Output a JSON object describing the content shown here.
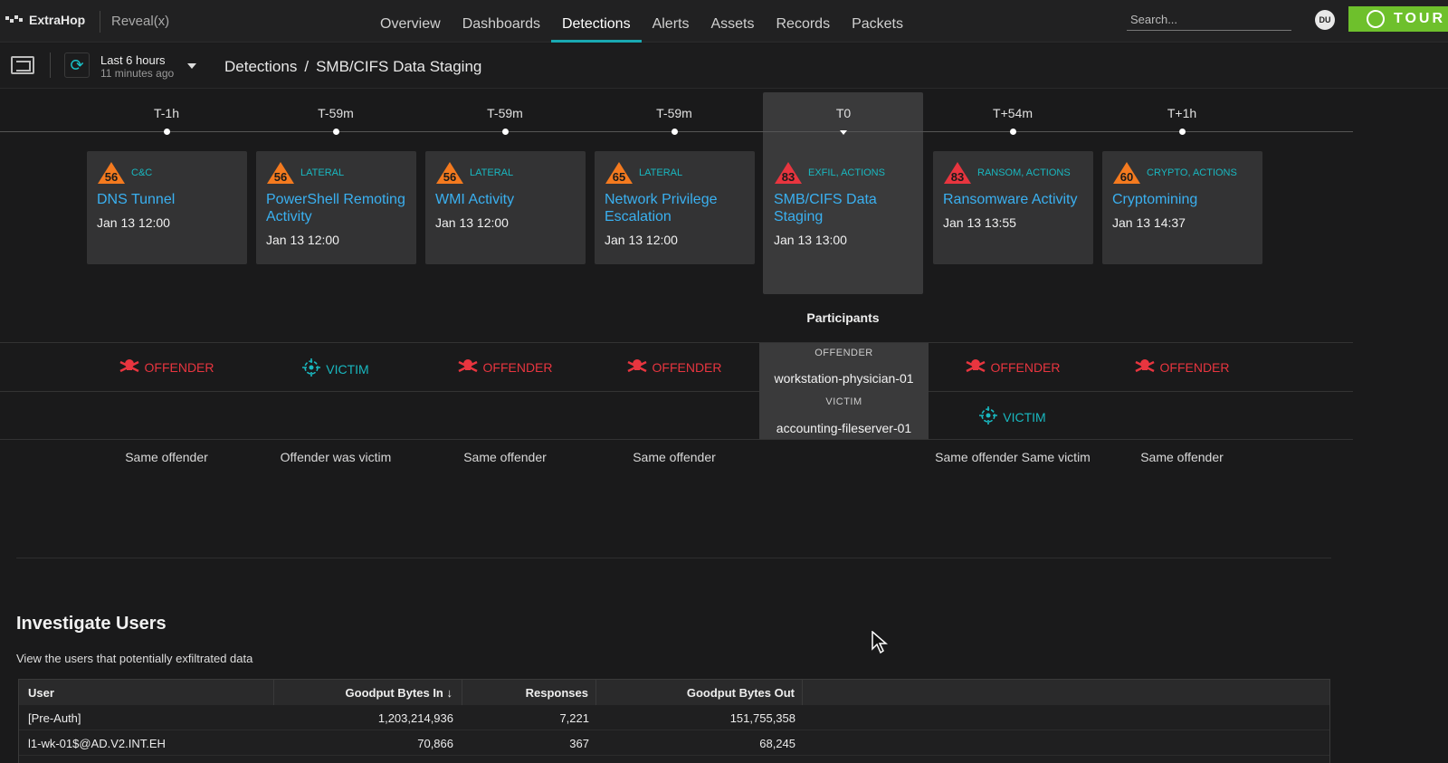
{
  "app": {
    "logo": "ExtraHop",
    "product": "Reveal(x)"
  },
  "nav": {
    "links": [
      "Overview",
      "Dashboards",
      "Detections",
      "Alerts",
      "Assets",
      "Records",
      "Packets"
    ],
    "active": "Detections",
    "search_placeholder": "Search...",
    "avatar": "DU",
    "tour": "TOUR"
  },
  "toolbar": {
    "time_range": "Last 6 hours",
    "time_updated": "11 minutes ago",
    "breadcrumb_root": "Detections",
    "breadcrumb_sep": "/",
    "breadcrumb_current": "SMB/CIFS Data Staging"
  },
  "timeline": [
    {
      "offset": "T-1h",
      "risk": "56",
      "risk_color": "#f47a1f",
      "category": "C&C",
      "title": "DNS Tunnel",
      "date": "Jan 13 12:00",
      "offender": "OFFENDER",
      "victim": "",
      "relation": "Same offender"
    },
    {
      "offset": "T-59m",
      "risk": "56",
      "risk_color": "#f47a1f",
      "category": "LATERAL",
      "title": "PowerShell Remoting Activity",
      "date": "Jan 13 12:00",
      "offender": "",
      "victim": "VICTIM",
      "relation": "Offender was victim"
    },
    {
      "offset": "T-59m",
      "risk": "56",
      "risk_color": "#f47a1f",
      "category": "LATERAL",
      "title": "WMI Activity",
      "date": "Jan 13 12:00",
      "offender": "OFFENDER",
      "victim": "",
      "relation": "Same offender"
    },
    {
      "offset": "T-59m",
      "risk": "65",
      "risk_color": "#f47a1f",
      "category": "LATERAL",
      "title": "Network Privilege Escalation",
      "date": "Jan 13 12:00",
      "offender": "OFFENDER",
      "victim": "",
      "relation": "Same offender"
    },
    {
      "offset": "T0",
      "risk": "83",
      "risk_color": "#e8353f",
      "category": "EXFIL, ACTIONS",
      "title": "SMB/CIFS Data Staging",
      "date": "Jan 13 13:00",
      "offender": "",
      "victim": "",
      "relation": ""
    },
    {
      "offset": "T+54m",
      "risk": "83",
      "risk_color": "#e8353f",
      "category": "RANSOM, ACTIONS",
      "title": "Ransomware Activity",
      "date": "Jan 13 13:55",
      "offender": "OFFENDER",
      "victim": "VICTIM",
      "relation": "Same offender Same victim"
    },
    {
      "offset": "T+1h",
      "risk": "60",
      "risk_color": "#f47a1f",
      "category": "CRYPTO, ACTIONS",
      "title": "Cryptomining",
      "date": "Jan 13 14:37",
      "offender": "OFFENDER",
      "victim": "",
      "relation": "Same offender"
    }
  ],
  "participants": {
    "title": "Participants",
    "offender_label": "OFFENDER",
    "offender_host": "workstation-physician-01",
    "victim_label": "VICTIM",
    "victim_host": "accounting-fileserver-01"
  },
  "investigate": {
    "title": "Investigate Users",
    "subtitle": "View the users that potentially exfiltrated data",
    "columns": [
      "User",
      "Goodput Bytes In ↓",
      "Responses",
      "Goodput Bytes Out"
    ],
    "rows": [
      [
        "[Pre-Auth]",
        "1,203,214,936",
        "7,221",
        "151,755,358"
      ],
      [
        "l1-wk-01$@AD.V2.INT.EH",
        "70,866",
        "367",
        "68,245"
      ]
    ]
  }
}
